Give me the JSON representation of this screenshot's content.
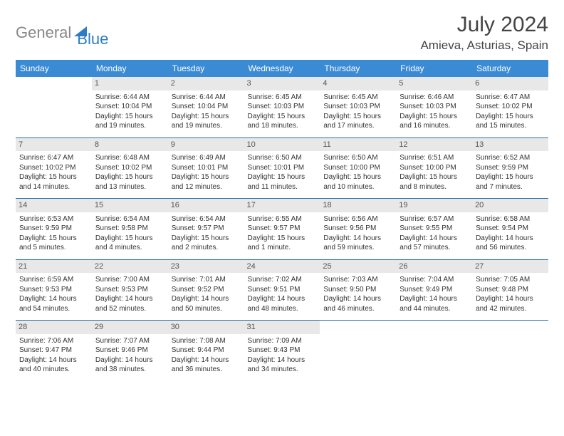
{
  "brand": {
    "part1": "General",
    "part2": "Blue"
  },
  "title": "July 2024",
  "location": "Amieva, Asturias, Spain",
  "colors": {
    "header_bg": "#3b8bd4",
    "daynum_bg": "#e8e8e8",
    "rule": "#2f6fa8",
    "logo_blue": "#2f7cc4",
    "logo_gray": "#888888"
  },
  "dayNames": [
    "Sunday",
    "Monday",
    "Tuesday",
    "Wednesday",
    "Thursday",
    "Friday",
    "Saturday"
  ],
  "weeks": [
    [
      null,
      {
        "n": "1",
        "sr": "Sunrise: 6:44 AM",
        "ss": "Sunset: 10:04 PM",
        "d1": "Daylight: 15 hours",
        "d2": "and 19 minutes."
      },
      {
        "n": "2",
        "sr": "Sunrise: 6:44 AM",
        "ss": "Sunset: 10:04 PM",
        "d1": "Daylight: 15 hours",
        "d2": "and 19 minutes."
      },
      {
        "n": "3",
        "sr": "Sunrise: 6:45 AM",
        "ss": "Sunset: 10:03 PM",
        "d1": "Daylight: 15 hours",
        "d2": "and 18 minutes."
      },
      {
        "n": "4",
        "sr": "Sunrise: 6:45 AM",
        "ss": "Sunset: 10:03 PM",
        "d1": "Daylight: 15 hours",
        "d2": "and 17 minutes."
      },
      {
        "n": "5",
        "sr": "Sunrise: 6:46 AM",
        "ss": "Sunset: 10:03 PM",
        "d1": "Daylight: 15 hours",
        "d2": "and 16 minutes."
      },
      {
        "n": "6",
        "sr": "Sunrise: 6:47 AM",
        "ss": "Sunset: 10:02 PM",
        "d1": "Daylight: 15 hours",
        "d2": "and 15 minutes."
      }
    ],
    [
      {
        "n": "7",
        "sr": "Sunrise: 6:47 AM",
        "ss": "Sunset: 10:02 PM",
        "d1": "Daylight: 15 hours",
        "d2": "and 14 minutes."
      },
      {
        "n": "8",
        "sr": "Sunrise: 6:48 AM",
        "ss": "Sunset: 10:02 PM",
        "d1": "Daylight: 15 hours",
        "d2": "and 13 minutes."
      },
      {
        "n": "9",
        "sr": "Sunrise: 6:49 AM",
        "ss": "Sunset: 10:01 PM",
        "d1": "Daylight: 15 hours",
        "d2": "and 12 minutes."
      },
      {
        "n": "10",
        "sr": "Sunrise: 6:50 AM",
        "ss": "Sunset: 10:01 PM",
        "d1": "Daylight: 15 hours",
        "d2": "and 11 minutes."
      },
      {
        "n": "11",
        "sr": "Sunrise: 6:50 AM",
        "ss": "Sunset: 10:00 PM",
        "d1": "Daylight: 15 hours",
        "d2": "and 10 minutes."
      },
      {
        "n": "12",
        "sr": "Sunrise: 6:51 AM",
        "ss": "Sunset: 10:00 PM",
        "d1": "Daylight: 15 hours",
        "d2": "and 8 minutes."
      },
      {
        "n": "13",
        "sr": "Sunrise: 6:52 AM",
        "ss": "Sunset: 9:59 PM",
        "d1": "Daylight: 15 hours",
        "d2": "and 7 minutes."
      }
    ],
    [
      {
        "n": "14",
        "sr": "Sunrise: 6:53 AM",
        "ss": "Sunset: 9:59 PM",
        "d1": "Daylight: 15 hours",
        "d2": "and 5 minutes."
      },
      {
        "n": "15",
        "sr": "Sunrise: 6:54 AM",
        "ss": "Sunset: 9:58 PM",
        "d1": "Daylight: 15 hours",
        "d2": "and 4 minutes."
      },
      {
        "n": "16",
        "sr": "Sunrise: 6:54 AM",
        "ss": "Sunset: 9:57 PM",
        "d1": "Daylight: 15 hours",
        "d2": "and 2 minutes."
      },
      {
        "n": "17",
        "sr": "Sunrise: 6:55 AM",
        "ss": "Sunset: 9:57 PM",
        "d1": "Daylight: 15 hours",
        "d2": "and 1 minute."
      },
      {
        "n": "18",
        "sr": "Sunrise: 6:56 AM",
        "ss": "Sunset: 9:56 PM",
        "d1": "Daylight: 14 hours",
        "d2": "and 59 minutes."
      },
      {
        "n": "19",
        "sr": "Sunrise: 6:57 AM",
        "ss": "Sunset: 9:55 PM",
        "d1": "Daylight: 14 hours",
        "d2": "and 57 minutes."
      },
      {
        "n": "20",
        "sr": "Sunrise: 6:58 AM",
        "ss": "Sunset: 9:54 PM",
        "d1": "Daylight: 14 hours",
        "d2": "and 56 minutes."
      }
    ],
    [
      {
        "n": "21",
        "sr": "Sunrise: 6:59 AM",
        "ss": "Sunset: 9:53 PM",
        "d1": "Daylight: 14 hours",
        "d2": "and 54 minutes."
      },
      {
        "n": "22",
        "sr": "Sunrise: 7:00 AM",
        "ss": "Sunset: 9:53 PM",
        "d1": "Daylight: 14 hours",
        "d2": "and 52 minutes."
      },
      {
        "n": "23",
        "sr": "Sunrise: 7:01 AM",
        "ss": "Sunset: 9:52 PM",
        "d1": "Daylight: 14 hours",
        "d2": "and 50 minutes."
      },
      {
        "n": "24",
        "sr": "Sunrise: 7:02 AM",
        "ss": "Sunset: 9:51 PM",
        "d1": "Daylight: 14 hours",
        "d2": "and 48 minutes."
      },
      {
        "n": "25",
        "sr": "Sunrise: 7:03 AM",
        "ss": "Sunset: 9:50 PM",
        "d1": "Daylight: 14 hours",
        "d2": "and 46 minutes."
      },
      {
        "n": "26",
        "sr": "Sunrise: 7:04 AM",
        "ss": "Sunset: 9:49 PM",
        "d1": "Daylight: 14 hours",
        "d2": "and 44 minutes."
      },
      {
        "n": "27",
        "sr": "Sunrise: 7:05 AM",
        "ss": "Sunset: 9:48 PM",
        "d1": "Daylight: 14 hours",
        "d2": "and 42 minutes."
      }
    ],
    [
      {
        "n": "28",
        "sr": "Sunrise: 7:06 AM",
        "ss": "Sunset: 9:47 PM",
        "d1": "Daylight: 14 hours",
        "d2": "and 40 minutes."
      },
      {
        "n": "29",
        "sr": "Sunrise: 7:07 AM",
        "ss": "Sunset: 9:46 PM",
        "d1": "Daylight: 14 hours",
        "d2": "and 38 minutes."
      },
      {
        "n": "30",
        "sr": "Sunrise: 7:08 AM",
        "ss": "Sunset: 9:44 PM",
        "d1": "Daylight: 14 hours",
        "d2": "and 36 minutes."
      },
      {
        "n": "31",
        "sr": "Sunrise: 7:09 AM",
        "ss": "Sunset: 9:43 PM",
        "d1": "Daylight: 14 hours",
        "d2": "and 34 minutes."
      },
      null,
      null,
      null
    ]
  ]
}
